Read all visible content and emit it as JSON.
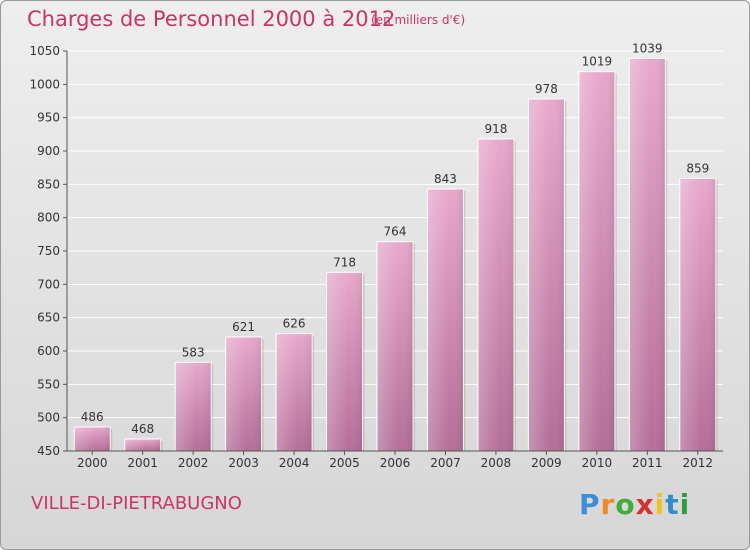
{
  "header": {
    "title": "Charges de Personnel 2000 à 2012",
    "subtitle": "(en milliers d'€)"
  },
  "footer": {
    "city": "VILLE-DI-PIETRABUGNO",
    "logo": {
      "letters": [
        "P",
        "r",
        "o",
        "x",
        "i",
        "t",
        "i"
      ],
      "colors": [
        "#3a8fd6",
        "#f08a1c",
        "#3fae3a",
        "#d8312c",
        "#f2c21b",
        "#2d8fd0",
        "#2e9d3c"
      ]
    }
  },
  "chart_data": {
    "type": "bar",
    "categories": [
      "2000",
      "2001",
      "2002",
      "2003",
      "2004",
      "2005",
      "2006",
      "2007",
      "2008",
      "2009",
      "2010",
      "2011",
      "2012"
    ],
    "values": [
      486,
      468,
      583,
      621,
      626,
      718,
      764,
      843,
      918,
      978,
      1019,
      1039,
      859
    ],
    "value_labels": [
      "486",
      "468",
      "583",
      "621",
      "626",
      "718",
      "764",
      "843",
      "918",
      "978",
      "1019",
      "1039",
      "859"
    ],
    "title": "Charges de Personnel 2000 à 2012",
    "xlabel": "",
    "ylabel": "",
    "ylim": [
      450,
      1050
    ],
    "yticks": [
      450,
      500,
      550,
      600,
      650,
      700,
      750,
      800,
      850,
      900,
      950,
      1000,
      1050
    ],
    "grid": true,
    "bar_color": "#d98cb8"
  }
}
